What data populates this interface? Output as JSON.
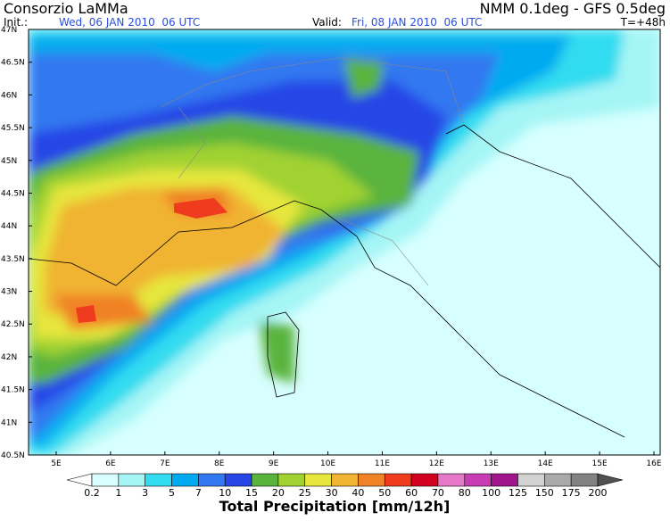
{
  "header": {
    "title": "Consorzio LaMMa",
    "model": "NMM 0.1deg - GFS 0.5deg",
    "init_label": "Init.:",
    "init_time": "Wed, 06 JAN 2010  06 UTC",
    "valid_label": "Valid:",
    "valid_time": "Fri, 08 JAN 2010  06 UTC",
    "lead": "T=+48h"
  },
  "map": {
    "lat_labels": [
      "47N",
      "46.5N",
      "46N",
      "45.5N",
      "45N",
      "44.5N",
      "44N",
      "43.5N",
      "43N",
      "42.5N",
      "42N",
      "41.5N",
      "41N",
      "40.5N"
    ],
    "lon_labels": [
      "5E",
      "6E",
      "7E",
      "8E",
      "9E",
      "10E",
      "11E",
      "12E",
      "13E",
      "14E",
      "15E",
      "16E"
    ]
  },
  "legend": {
    "title": "Total Precipitation [mm/12h]",
    "levels": [
      0.2,
      1,
      3,
      5,
      7,
      10,
      15,
      20,
      25,
      30,
      40,
      50,
      60,
      70,
      80,
      100,
      125,
      150,
      175,
      200
    ],
    "colors": [
      "#ffffff",
      "#d7ffff",
      "#a5f5f5",
      "#32dcf0",
      "#00aaf0",
      "#3278f0",
      "#2846e6",
      "#5ab43c",
      "#a0d232",
      "#e6e63c",
      "#f0b432",
      "#f08228",
      "#f03c1e",
      "#d2001e",
      "#e678c8",
      "#c83cb4",
      "#a0148c",
      "#d2d2d2",
      "#aaaaaa",
      "#828282",
      "#505050"
    ]
  }
}
